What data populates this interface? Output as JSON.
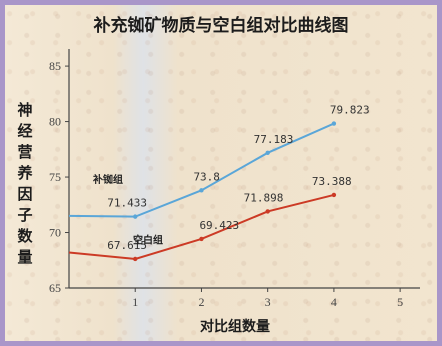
{
  "chart_data": {
    "type": "line",
    "title": "补充铷矿物质与空白组对比曲线图",
    "xlabel": "对比组数量",
    "ylabel": "神经营养因子数量",
    "xlim": [
      0,
      5.3
    ],
    "ylim": [
      65,
      86
    ],
    "x_ticks": [
      "1",
      "2",
      "3",
      "4",
      "5"
    ],
    "y_ticks": [
      "65",
      "70",
      "75",
      "80",
      "85"
    ],
    "x": [
      0,
      1,
      2,
      3,
      4
    ],
    "series": [
      {
        "name": "补铷组",
        "color": "#5aa6d8",
        "values": [
          71.5,
          71.433,
          73.8,
          77.183,
          79.823
        ],
        "labels": [
          "",
          "71.433",
          "73.8",
          "77.183",
          "79.823"
        ]
      },
      {
        "name": "空白组",
        "color": "#cc3a25",
        "values": [
          68.2,
          67.615,
          69.423,
          71.898,
          73.388
        ],
        "labels": [
          "",
          "67.615",
          "69.423",
          "71.898",
          "73.388"
        ]
      }
    ],
    "grid": false
  }
}
